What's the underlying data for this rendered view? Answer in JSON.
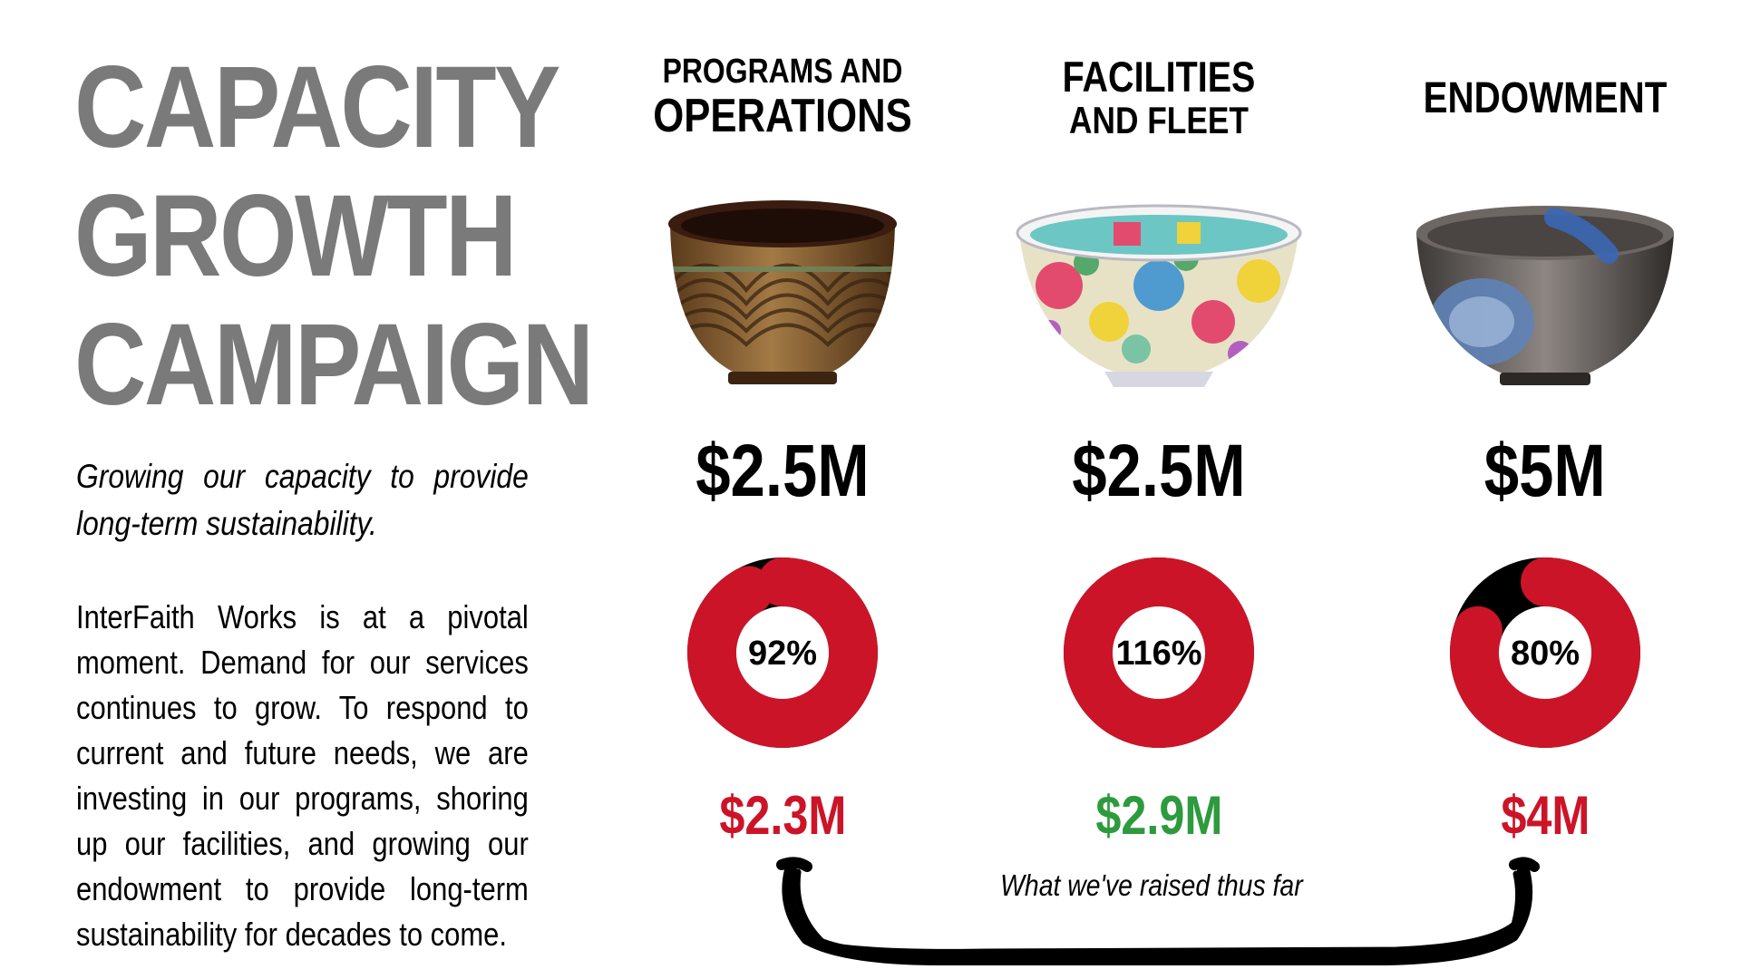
{
  "title": [
    "CAPACITY",
    "GROWTH",
    "CAMPAIGN"
  ],
  "tagline": "Growing our capacity to provide long-term sustainability.",
  "body": "InterFaith Works is at a pivotal moment. Demand for our services continues to grow. To respond to current and future needs, we are investing in our programs, shoring up our facilities, and growing our endowment to provide long-term sustainability for decades to come.",
  "raised_note": "What we've raised thus far",
  "colors": {
    "title_gray": "#7a7a7a",
    "ring_red": "#cc1428",
    "ring_black": "#000000",
    "raised_red": "#cc1428",
    "raised_green": "#2e9a3e"
  },
  "columns": [
    {
      "heading": [
        "PROGRAMS AND",
        "OPERATIONS"
      ],
      "bowl_icon": "carved-wooden-bowl",
      "goal": "$2.5M",
      "percent_label": "92%",
      "percent_value": 92,
      "raised": "$2.3M",
      "raised_status": "below-goal"
    },
    {
      "heading": [
        "FACILITIES",
        "AND FLEET"
      ],
      "bowl_icon": "floral-porcelain-bowl",
      "goal": "$2.5M",
      "percent_label": "116%",
      "percent_value": 116,
      "raised": "$2.9M",
      "raised_status": "above-goal"
    },
    {
      "heading": [
        "ENDOWMENT"
      ],
      "bowl_icon": "glazed-stoneware-bowl",
      "goal": "$5M",
      "percent_label": "80%",
      "percent_value": 80,
      "raised": "$4M",
      "raised_status": "below-goal"
    }
  ]
}
